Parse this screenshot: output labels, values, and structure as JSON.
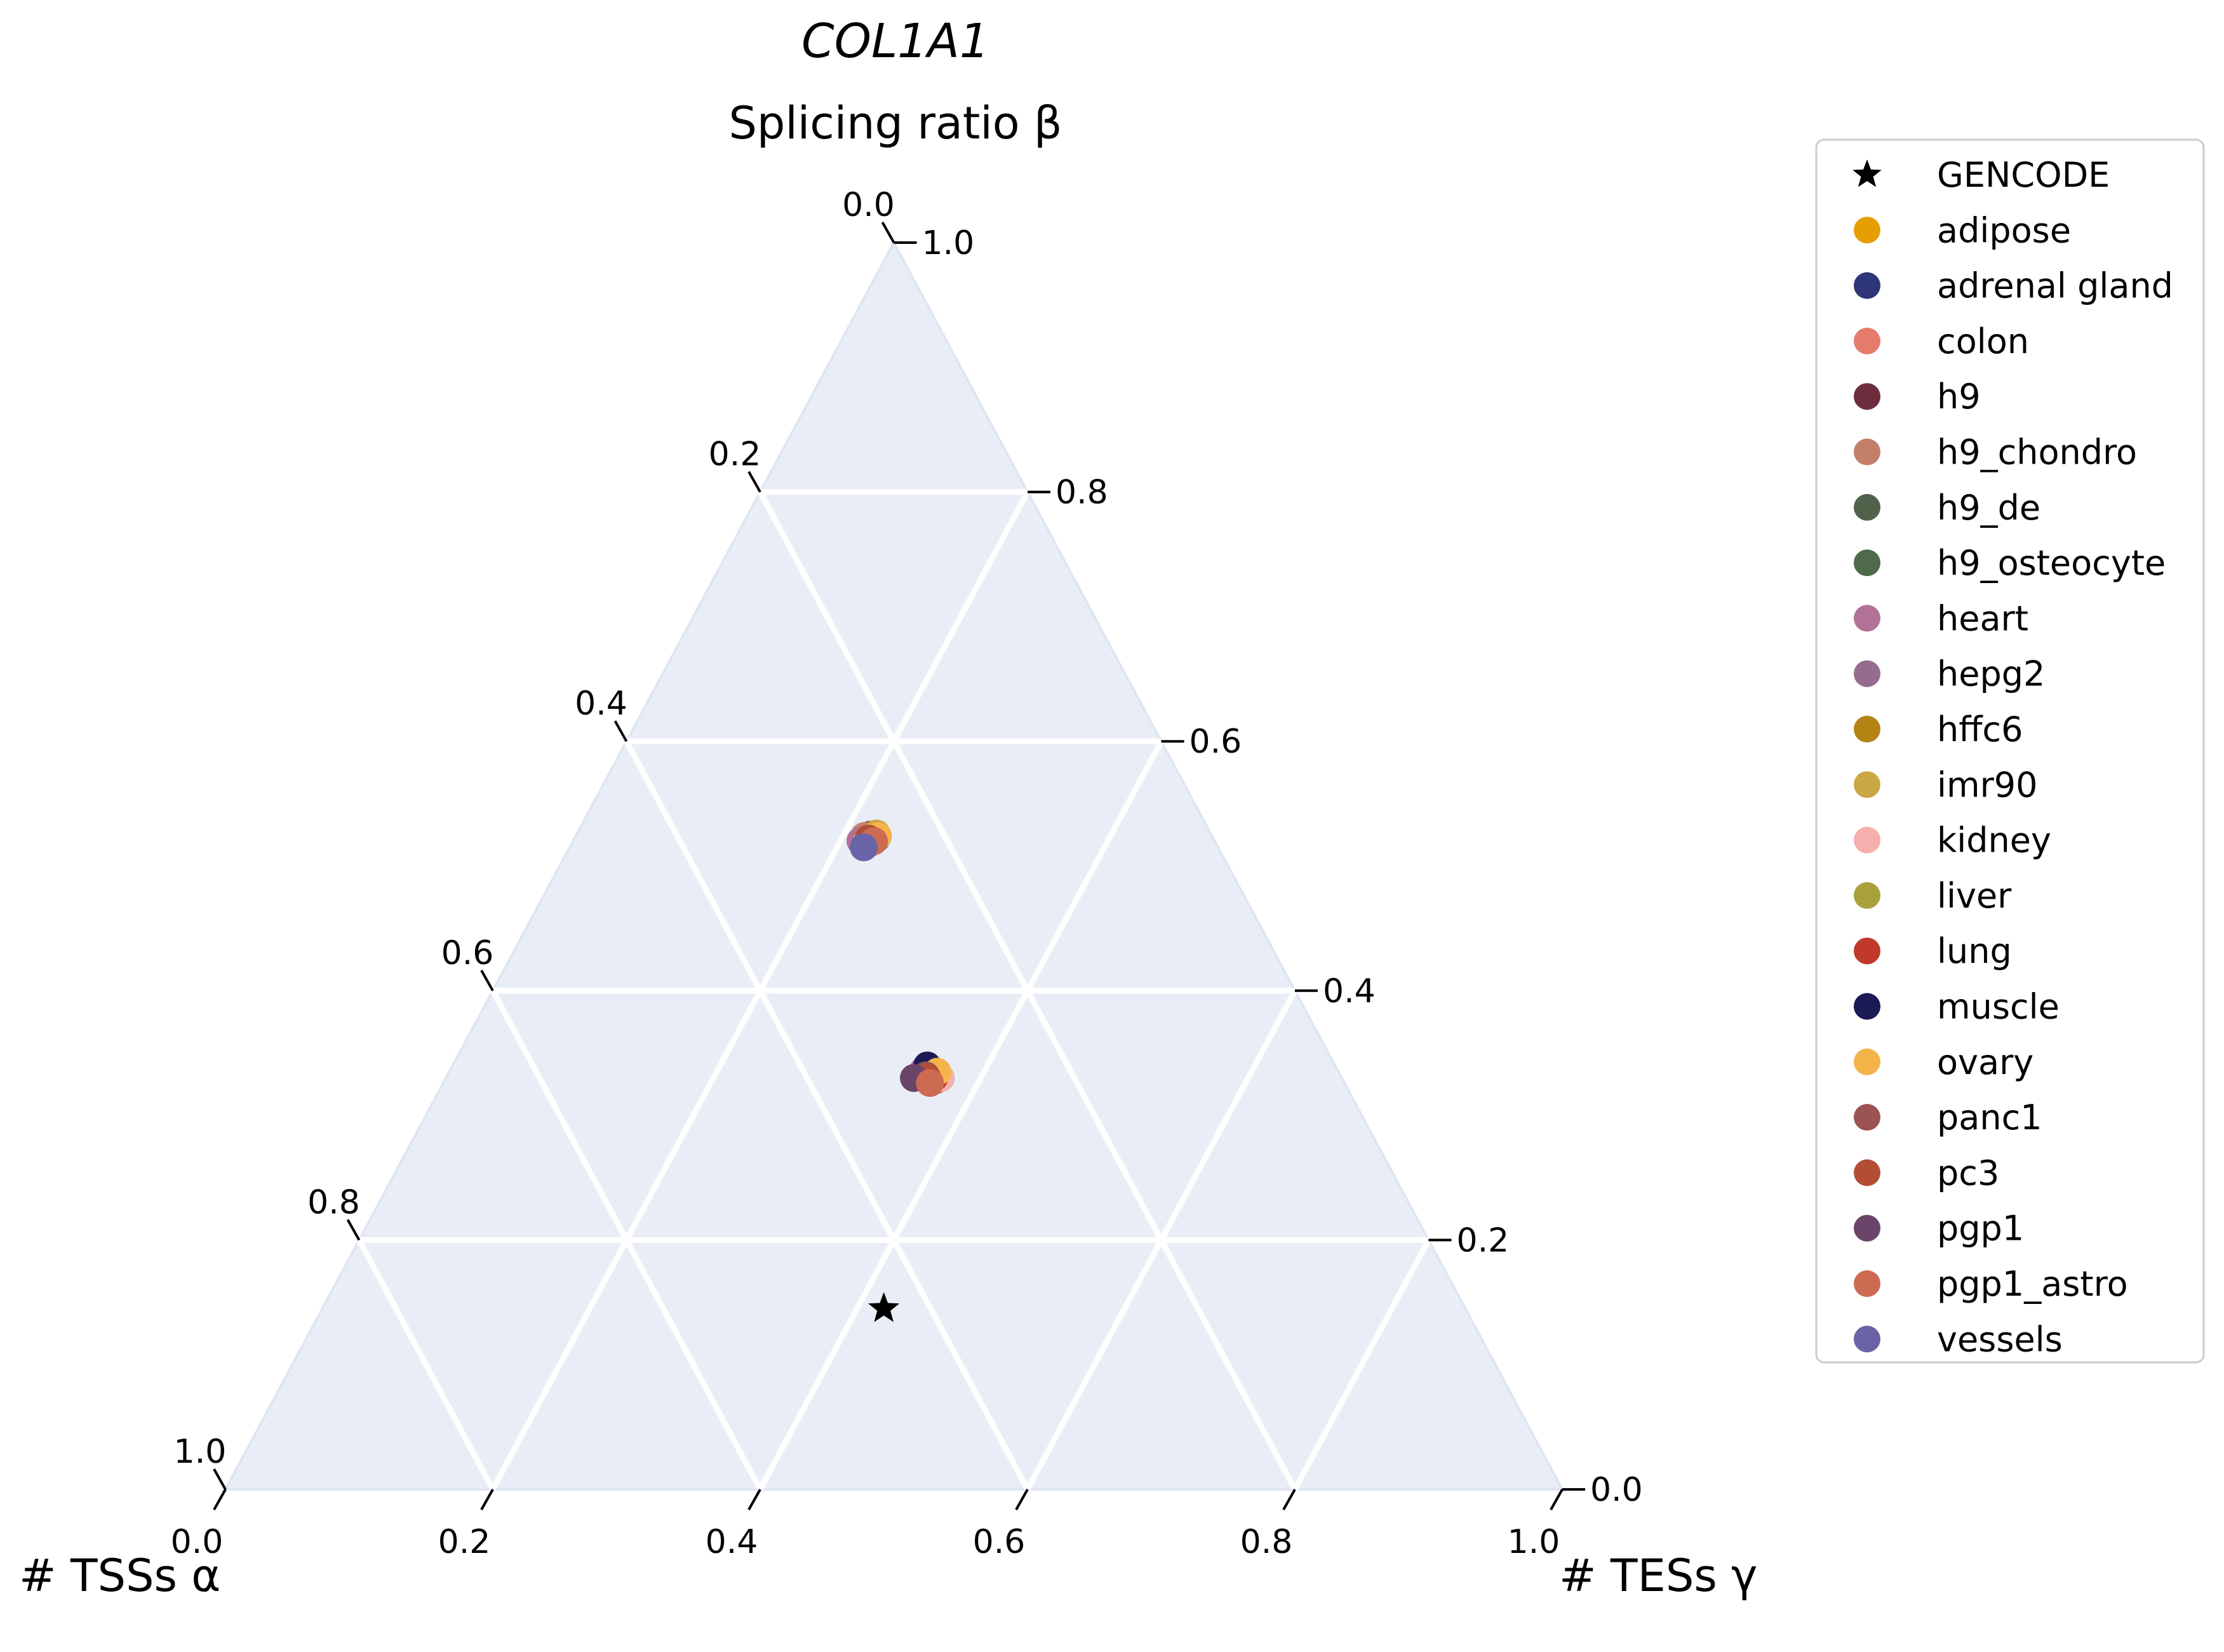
{
  "chart_data": {
    "type": "scatter",
    "subtype": "ternary",
    "title": "COL1A1",
    "axes": {
      "top": {
        "label": "Splicing ratio β",
        "ticks": [
          "0.0",
          "0.2",
          "0.4",
          "0.6",
          "0.8",
          "1.0"
        ]
      },
      "right": {
        "ticks": [
          "1.0",
          "0.8",
          "0.6",
          "0.4",
          "0.2",
          "0.0"
        ]
      },
      "bottom": {
        "ticks": [
          "0.0",
          "0.2",
          "0.4",
          "0.6",
          "0.8",
          "1.0"
        ]
      },
      "left_corner": {
        "label": "# TSSs α",
        "tick": "1.0"
      },
      "right_corner": {
        "label": "# TESs γ"
      }
    },
    "grid": true,
    "background_color": "#e9eef6",
    "legend_position": "right",
    "series": [
      {
        "name": "GENCODE",
        "color": "#000000",
        "marker": "star",
        "points": [
          [
            0.435,
            0.145,
            0.42
          ]
        ]
      },
      {
        "name": "adipose",
        "color": "#e69f00",
        "marker": "circle",
        "points": [
          [
            0.31,
            0.335,
            0.355
          ],
          [
            0.252,
            0.525,
            0.223
          ]
        ]
      },
      {
        "name": "adrenal gland",
        "color": "#2e3578",
        "marker": "circle",
        "points": [
          [
            0.31,
            0.33,
            0.36
          ],
          [
            0.25,
            0.524,
            0.226
          ]
        ]
      },
      {
        "name": "colon",
        "color": "#e57c6b",
        "marker": "circle",
        "points": [
          [
            0.31,
            0.332,
            0.358
          ],
          [
            0.26,
            0.52,
            0.22
          ]
        ]
      },
      {
        "name": "h9",
        "color": "#6e2d3d",
        "marker": "circle",
        "points": [
          [
            0.305,
            0.334,
            0.361
          ],
          [
            0.255,
            0.525,
            0.22
          ]
        ]
      },
      {
        "name": "h9_chondro",
        "color": "#c47f69",
        "marker": "circle",
        "points": [
          [
            0.305,
            0.328,
            0.367
          ],
          [
            0.26,
            0.524,
            0.216
          ]
        ]
      },
      {
        "name": "h9_de",
        "color": "#51624a",
        "marker": "circle",
        "points": [
          [
            0.305,
            0.335,
            0.36
          ],
          [
            0.26,
            0.52,
            0.22
          ]
        ]
      },
      {
        "name": "h9_osteocyte",
        "color": "#4e6a4a",
        "marker": "circle",
        "points": [
          [
            0.3,
            0.33,
            0.37
          ],
          [
            0.252,
            0.522,
            0.226
          ]
        ]
      },
      {
        "name": "heart",
        "color": "#b27196",
        "marker": "circle",
        "points": [
          [
            0.31,
            0.336,
            0.354
          ],
          [
            0.265,
            0.52,
            0.215
          ]
        ]
      },
      {
        "name": "hepg2",
        "color": "#946c8e",
        "marker": "circle",
        "points": [
          [
            0.3,
            0.33,
            0.37
          ],
          [
            0.255,
            0.52,
            0.225
          ]
        ]
      },
      {
        "name": "hffc6",
        "color": "#b38314",
        "marker": "circle",
        "points": [
          [
            0.3,
            0.33,
            0.37
          ],
          [
            0.255,
            0.52,
            0.225
          ]
        ]
      },
      {
        "name": "imr90",
        "color": "#cca844",
        "marker": "circle",
        "points": [
          [
            0.305,
            0.333,
            0.362
          ],
          [
            0.25,
            0.526,
            0.224
          ]
        ]
      },
      {
        "name": "kidney",
        "color": "#f5afac",
        "marker": "circle",
        "points": [
          [
            0.3,
            0.33,
            0.37
          ],
          [
            0.26,
            0.52,
            0.22
          ]
        ]
      },
      {
        "name": "liver",
        "color": "#a9a23c",
        "marker": "circle",
        "points": [
          [
            0.305,
            0.33,
            0.365
          ],
          [
            0.255,
            0.52,
            0.225
          ]
        ]
      },
      {
        "name": "lung",
        "color": "#c0392b",
        "marker": "circle",
        "points": [
          [
            0.305,
            0.33,
            0.365
          ],
          [
            0.258,
            0.52,
            0.222
          ]
        ]
      },
      {
        "name": "muscle",
        "color": "#1b1a55",
        "marker": "circle",
        "points": [
          [
            0.305,
            0.34,
            0.355
          ]
        ]
      },
      {
        "name": "ovary",
        "color": "#f5b449",
        "marker": "circle",
        "points": [
          [
            0.3,
            0.335,
            0.365
          ],
          [
            0.25,
            0.524,
            0.226
          ]
        ]
      },
      {
        "name": "panc1",
        "color": "#9b5252",
        "marker": "circle",
        "points": [
          [
            0.31,
            0.332,
            0.358
          ],
          [
            0.26,
            0.518,
            0.222
          ]
        ]
      },
      {
        "name": "pc3",
        "color": "#b34e35",
        "marker": "circle",
        "points": [
          [
            0.31,
            0.33,
            0.36
          ],
          [
            0.258,
            0.522,
            0.22
          ]
        ]
      },
      {
        "name": "pgp1",
        "color": "#6a4469",
        "marker": "circle",
        "points": [
          [
            0.32,
            0.33,
            0.35
          ],
          [
            0.255,
            0.52,
            0.225
          ]
        ]
      },
      {
        "name": "pgp1_astro",
        "color": "#cd6b52",
        "marker": "circle",
        "points": [
          [
            0.31,
            0.326,
            0.364
          ],
          [
            0.255,
            0.52,
            0.225
          ]
        ]
      },
      {
        "name": "vessels",
        "color": "#6b63a8",
        "marker": "circle",
        "points": [
          [
            0.265,
            0.515,
            0.22
          ]
        ]
      }
    ]
  }
}
